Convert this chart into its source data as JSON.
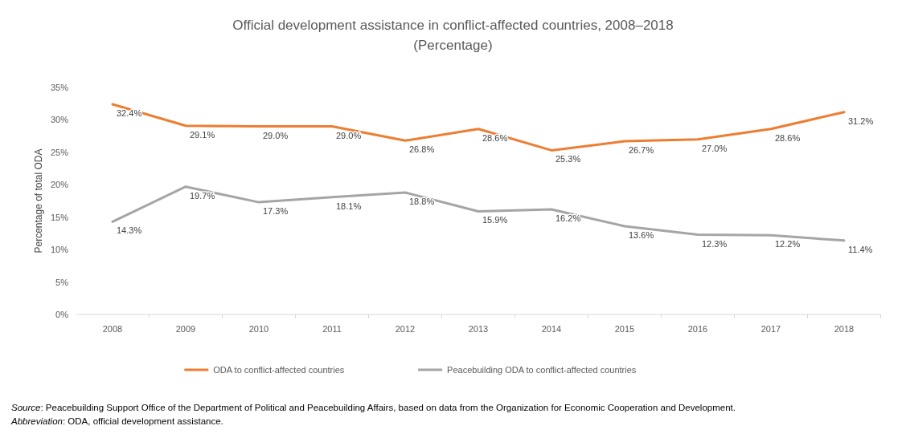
{
  "chart_data": {
    "type": "line",
    "title": "Official development assistance in conflict-affected countries, 2008–2018",
    "subtitle": "(Percentage)",
    "ylabel": "Percentage of total ODA",
    "categories": [
      "2008",
      "2009",
      "2010",
      "2011",
      "2012",
      "2013",
      "2014",
      "2015",
      "2016",
      "2017",
      "2018"
    ],
    "series": [
      {
        "name": "ODA to conflict-affected countries",
        "color": "#ed7d31",
        "values": [
          32.4,
          29.1,
          29.0,
          29.0,
          26.8,
          28.6,
          25.3,
          26.7,
          27.0,
          28.6,
          31.2
        ],
        "value_labels": [
          "32.4%",
          "29.1%",
          "29.0%",
          "29.0%",
          "26.8%",
          "28.6%",
          "25.3%",
          "26.7%",
          "27.0%",
          "28.6%",
          "31.2%"
        ]
      },
      {
        "name": "Peacebuilding ODA to conflict-affected countries",
        "color": "#a5a5a5",
        "values": [
          14.3,
          19.7,
          17.3,
          18.1,
          18.8,
          15.9,
          16.2,
          13.6,
          12.3,
          12.2,
          11.4
        ],
        "value_labels": [
          "14.3%",
          "19.7%",
          "17.3%",
          "18.1%",
          "18.8%",
          "15.9%",
          "16.2%",
          "13.6%",
          "12.3%",
          "12.2%",
          "11.4%"
        ]
      }
    ],
    "ylim": [
      0,
      35
    ],
    "yticks": [
      {
        "value": 0,
        "label": "0%"
      },
      {
        "value": 5,
        "label": "5%"
      },
      {
        "value": 10,
        "label": "10%"
      },
      {
        "value": 15,
        "label": "15%"
      },
      {
        "value": 20,
        "label": "20%"
      },
      {
        "value": 25,
        "label": "25%"
      },
      {
        "value": 30,
        "label": "30%"
      },
      {
        "value": 35,
        "label": "35%"
      }
    ],
    "legend": "bottom",
    "annotations": [
      "Source: Peacebuilding Support Office of the Department of Political and Peacebuilding Affairs, based on data from the Organization for Economic Cooperation and Development.",
      "Abbreviation: ODA, official development assistance."
    ]
  }
}
